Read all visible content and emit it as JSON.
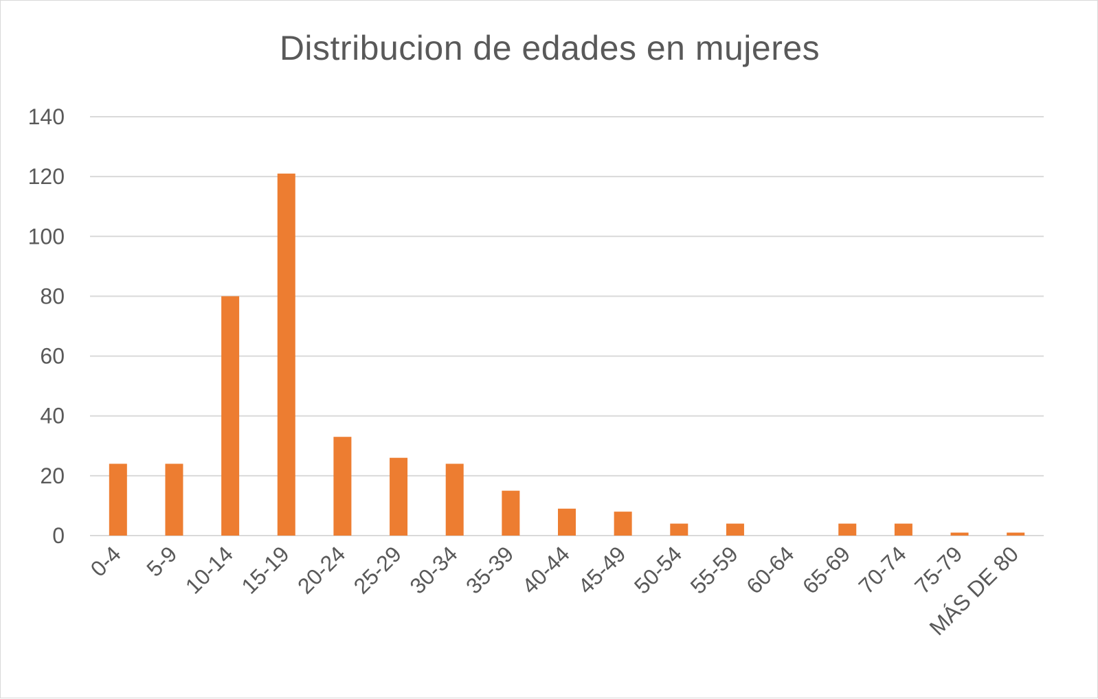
{
  "chart_data": {
    "type": "bar",
    "title": "Distribucion de edades en mujeres",
    "xlabel": "",
    "ylabel": "",
    "categories": [
      "0-4",
      "5-9",
      "10-14",
      "15-19",
      "20-24",
      "25-29",
      "30-34",
      "35-39",
      "40-44",
      "45-49",
      "50-54",
      "55-59",
      "60-64",
      "65-69",
      "70-74",
      "75-79",
      "MÁS DE 80"
    ],
    "values": [
      24,
      24,
      80,
      121,
      33,
      26,
      24,
      15,
      9,
      8,
      4,
      4,
      0,
      4,
      4,
      1,
      1
    ],
    "ylim": [
      0,
      140
    ],
    "yticks": [
      0,
      20,
      40,
      60,
      80,
      100,
      120,
      140
    ],
    "grid": true,
    "legend": "none",
    "colors": {
      "bar": "#ED7D31",
      "grid": "#D9D9D9",
      "text": "#595959"
    }
  }
}
